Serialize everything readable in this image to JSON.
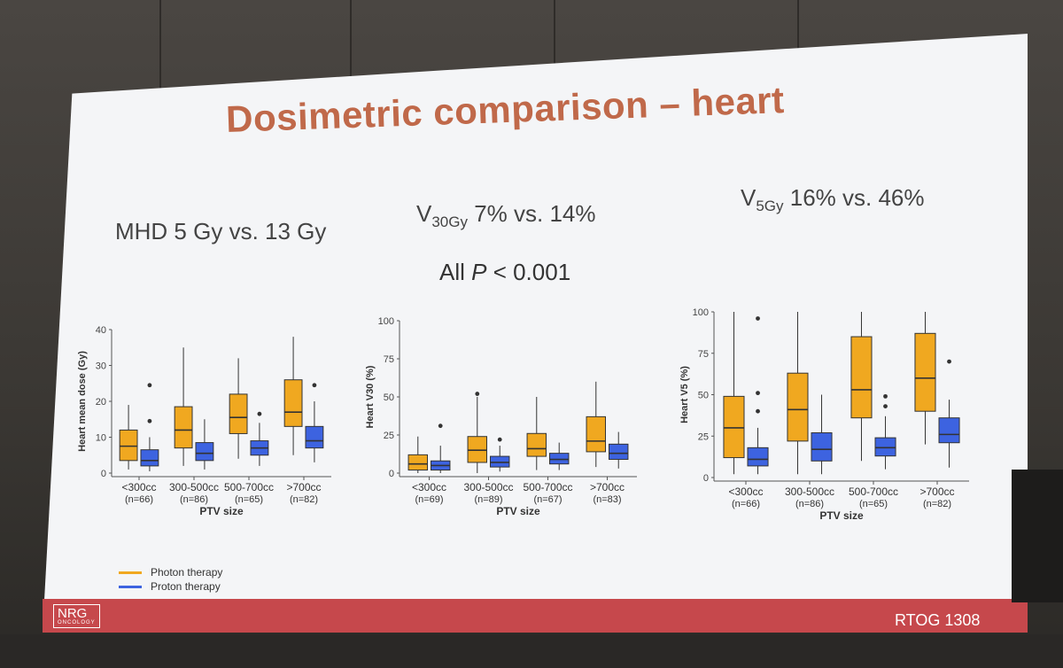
{
  "slide": {
    "title": "Dosimetric comparison – heart",
    "stats": {
      "mhd": "MHD 5 Gy vs. 13 Gy",
      "v30_pre": "V",
      "v30_sub": "30Gy",
      "v30_post": " 7% vs. 14%",
      "v5_pre": "V",
      "v5_sub": "5Gy",
      "v5_post": " 16% vs. 46%"
    },
    "pvalue": {
      "pre": "All ",
      "p": "P",
      "post": " < 0.001"
    },
    "legend": [
      {
        "label": "Photon therapy",
        "color": "#f0a820"
      },
      {
        "label": "Proton therapy",
        "color": "#3d63e0"
      }
    ],
    "footer": {
      "logo_top": "NRG",
      "logo_bottom": "ONCOLOGY",
      "trial": "RTOG 1308"
    }
  },
  "chart_data": [
    {
      "type": "box",
      "id": "mhd",
      "ylabel": "Heart mean dose (Gy)",
      "xlabel": "PTV size",
      "ylim": [
        0,
        40
      ],
      "yticks": [
        0,
        10,
        20,
        30,
        40
      ],
      "categories": [
        "<300cc",
        "300-500cc",
        "500-700cc",
        ">700cc"
      ],
      "n_labels": [
        "(n=66)",
        "(n=86)",
        "(n=65)",
        "(n=82)"
      ],
      "series": [
        {
          "name": "Photon therapy",
          "color": "#f0a820",
          "boxes": [
            {
              "min": 1,
              "q1": 3.5,
              "median": 7.5,
              "q3": 12,
              "max": 19,
              "outliers": []
            },
            {
              "min": 2,
              "q1": 7,
              "median": 12,
              "q3": 18.5,
              "max": 35,
              "outliers": []
            },
            {
              "min": 4,
              "q1": 11,
              "median": 15.5,
              "q3": 22,
              "max": 32,
              "outliers": []
            },
            {
              "min": 5,
              "q1": 13,
              "median": 17,
              "q3": 26,
              "max": 38,
              "outliers": []
            }
          ]
        },
        {
          "name": "Proton therapy",
          "color": "#3d63e0",
          "boxes": [
            {
              "min": 0.5,
              "q1": 2,
              "median": 3.5,
              "q3": 6.5,
              "max": 10,
              "outliers": [
                14.5,
                24.5
              ]
            },
            {
              "min": 1,
              "q1": 3.5,
              "median": 5.5,
              "q3": 8.5,
              "max": 15,
              "outliers": []
            },
            {
              "min": 2,
              "q1": 5,
              "median": 7,
              "q3": 9,
              "max": 14,
              "outliers": [
                16.5
              ]
            },
            {
              "min": 3,
              "q1": 7,
              "median": 9,
              "q3": 13,
              "max": 20,
              "outliers": [
                24.5
              ]
            }
          ]
        }
      ]
    },
    {
      "type": "box",
      "id": "v30",
      "ylabel": "Heart V30 (%)",
      "xlabel": "PTV size",
      "ylim": [
        0,
        100
      ],
      "yticks": [
        0,
        25,
        50,
        75,
        100
      ],
      "categories": [
        "<300cc",
        "300-500cc",
        "500-700cc",
        ">700cc"
      ],
      "n_labels": [
        "(n=69)",
        "(n=89)",
        "(n=67)",
        "(n=83)"
      ],
      "series": [
        {
          "name": "Photon therapy",
          "color": "#f0a820",
          "boxes": [
            {
              "min": 0,
              "q1": 2,
              "median": 6,
              "q3": 12,
              "max": 24,
              "outliers": []
            },
            {
              "min": 0,
              "q1": 7,
              "median": 15,
              "q3": 24,
              "max": 50,
              "outliers": [
                52
              ]
            },
            {
              "min": 2,
              "q1": 11,
              "median": 16,
              "q3": 26,
              "max": 50,
              "outliers": []
            },
            {
              "min": 4,
              "q1": 14,
              "median": 21,
              "q3": 37,
              "max": 60,
              "outliers": []
            }
          ]
        },
        {
          "name": "Proton therapy",
          "color": "#3d63e0",
          "boxes": [
            {
              "min": 0,
              "q1": 2,
              "median": 5,
              "q3": 8,
              "max": 18,
              "outliers": [
                31
              ]
            },
            {
              "min": 1,
              "q1": 4,
              "median": 7,
              "q3": 11,
              "max": 18,
              "outliers": [
                22
              ]
            },
            {
              "min": 2,
              "q1": 6,
              "median": 9,
              "q3": 13,
              "max": 20,
              "outliers": []
            },
            {
              "min": 3,
              "q1": 9,
              "median": 13,
              "q3": 19,
              "max": 27,
              "outliers": []
            }
          ]
        }
      ]
    },
    {
      "type": "box",
      "id": "v5",
      "ylabel": "Heart V5 (%)",
      "xlabel": "PTV size",
      "ylim": [
        0,
        100
      ],
      "yticks": [
        0,
        25,
        50,
        75,
        100
      ],
      "categories": [
        "<300cc",
        "300-500cc",
        "500-700cc",
        ">700cc"
      ],
      "n_labels": [
        "(n=66)",
        "(n=86)",
        "(n=65)",
        "(n=82)"
      ],
      "series": [
        {
          "name": "Photon therapy",
          "color": "#f0a820",
          "boxes": [
            {
              "min": 2,
              "q1": 12,
              "median": 30,
              "q3": 49,
              "max": 100,
              "outliers": []
            },
            {
              "min": 2,
              "q1": 22,
              "median": 41,
              "q3": 63,
              "max": 100,
              "outliers": []
            },
            {
              "min": 10,
              "q1": 36,
              "median": 53,
              "q3": 85,
              "max": 100,
              "outliers": []
            },
            {
              "min": 20,
              "q1": 40,
              "median": 60,
              "q3": 87,
              "max": 100,
              "outliers": []
            }
          ]
        },
        {
          "name": "Proton therapy",
          "color": "#3d63e0",
          "boxes": [
            {
              "min": 2,
              "q1": 7,
              "median": 11,
              "q3": 18,
              "max": 30,
              "outliers": [
                40,
                51,
                96
              ]
            },
            {
              "min": 2,
              "q1": 10,
              "median": 17,
              "q3": 27,
              "max": 50,
              "outliers": []
            },
            {
              "min": 5,
              "q1": 13,
              "median": 18,
              "q3": 24,
              "max": 37,
              "outliers": [
                43,
                49
              ]
            },
            {
              "min": 6,
              "q1": 21,
              "median": 26,
              "q3": 36,
              "max": 47,
              "outliers": [
                70
              ]
            }
          ]
        }
      ]
    }
  ]
}
